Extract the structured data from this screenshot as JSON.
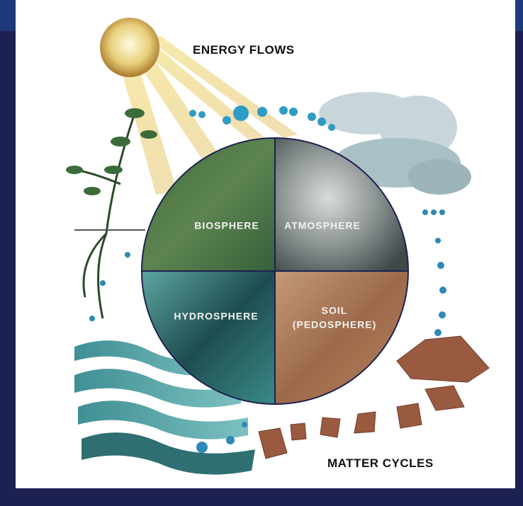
{
  "title": "ENERGY FLOWS",
  "caption": "MATTER CYCLES",
  "spheres": [
    {
      "lines": [
        "BIOSPHERE"
      ]
    },
    {
      "lines": [
        "ATMOSPHERE"
      ]
    },
    {
      "lines": [
        "HYDROSPHERE"
      ]
    },
    {
      "lines": [
        "SOIL",
        "(PEDOSPHERE)"
      ]
    }
  ]
}
